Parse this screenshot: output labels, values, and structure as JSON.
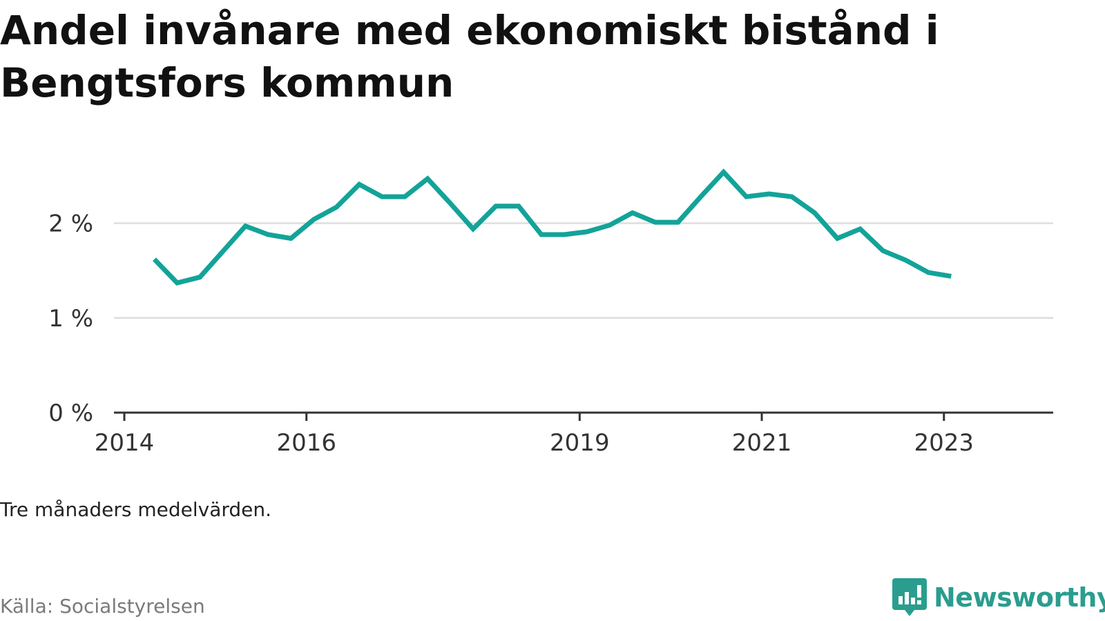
{
  "title": "Andel invånare med ekonomiskt bistånd i Bengtsfors kommun",
  "note": "Tre månaders medelvärden.",
  "source": "Källa: Socialstyrelsen",
  "brand": {
    "name": "Newsworthy",
    "color": "#2a9d8f",
    "icon": "newsworthy-chart-icon"
  },
  "colors": {
    "line": "#13a399",
    "grid": "#dddddd",
    "axis": "#333333"
  },
  "chart_data": {
    "type": "line",
    "x_unit": "year",
    "xlim": [
      2014,
      2024.2
    ],
    "ylim": [
      0,
      2.9
    ],
    "y_ticks": [
      {
        "value": 0,
        "label": "0 %"
      },
      {
        "value": 1,
        "label": "1 %"
      },
      {
        "value": 2,
        "label": "2 %"
      }
    ],
    "x_ticks": [
      {
        "value": 2014,
        "label": "2014"
      },
      {
        "value": 2016,
        "label": "2016"
      },
      {
        "value": 2019,
        "label": "2019"
      },
      {
        "value": 2021,
        "label": "2021"
      },
      {
        "value": 2023,
        "label": "2023"
      }
    ],
    "grid": true,
    "series": [
      {
        "x": [
          2014.33,
          2014.58,
          2014.83,
          2015.08,
          2015.33,
          2015.58,
          2015.83,
          2016.08,
          2016.33,
          2016.58,
          2016.83,
          2017.08,
          2017.33,
          2017.58,
          2017.83,
          2018.08,
          2018.33,
          2018.58,
          2018.83,
          2019.08,
          2019.33,
          2019.58,
          2019.83,
          2020.08,
          2020.33,
          2020.58,
          2020.83,
          2021.08,
          2021.33,
          2021.58,
          2021.83,
          2022.08,
          2022.33,
          2022.58,
          2022.83,
          2023.08
        ],
        "values": [
          1.62,
          1.37,
          1.43,
          1.7,
          1.97,
          1.88,
          1.84,
          2.04,
          2.17,
          2.41,
          2.28,
          2.28,
          2.47,
          2.21,
          1.94,
          2.18,
          2.18,
          1.88,
          1.88,
          1.91,
          1.98,
          2.11,
          2.01,
          2.01,
          2.28,
          2.54,
          2.28,
          2.31,
          2.28,
          2.11,
          1.84,
          1.94,
          1.71,
          1.61,
          1.48,
          1.44
        ]
      }
    ]
  }
}
